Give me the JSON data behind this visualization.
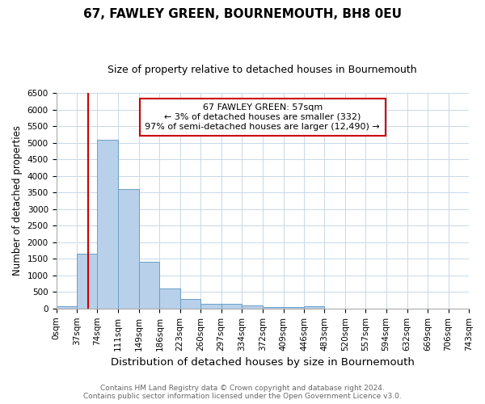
{
  "title": "67, FAWLEY GREEN, BOURNEMOUTH, BH8 0EU",
  "subtitle": "Size of property relative to detached houses in Bournemouth",
  "xlabel": "Distribution of detached houses by size in Bournemouth",
  "ylabel": "Number of detached properties",
  "bin_edges": [
    0,
    37,
    74,
    111,
    149,
    186,
    223,
    260,
    297,
    334,
    372,
    409,
    446,
    483,
    520,
    557,
    594,
    632,
    669,
    706,
    743
  ],
  "bar_heights": [
    75,
    1650,
    5080,
    3600,
    1400,
    610,
    300,
    150,
    150,
    100,
    50,
    50,
    60,
    0,
    0,
    0,
    0,
    0,
    0,
    0
  ],
  "bar_color": "#b8d0ea",
  "bar_edge_color": "#6b9fc8",
  "property_size": 57,
  "red_line_color": "#cc0000",
  "annotation_text": "67 FAWLEY GREEN: 57sqm\n← 3% of detached houses are smaller (332)\n97% of semi-detached houses are larger (12,490) →",
  "annotation_box_color": "white",
  "annotation_box_edge_color": "#cc0000",
  "ylim": [
    0,
    6500
  ],
  "yticks": [
    0,
    500,
    1000,
    1500,
    2000,
    2500,
    3000,
    3500,
    4000,
    4500,
    5000,
    5500,
    6000,
    6500
  ],
  "footer_line1": "Contains HM Land Registry data © Crown copyright and database right 2024.",
  "footer_line2": "Contains public sector information licensed under the Open Government Licence v3.0.",
  "background_color": "#ffffff",
  "grid_color": "#c8d8e8",
  "title_fontsize": 11,
  "subtitle_fontsize": 9,
  "xlabel_fontsize": 9.5,
  "ylabel_fontsize": 8.5,
  "tick_fontsize": 7.5,
  "footer_fontsize": 6.5
}
